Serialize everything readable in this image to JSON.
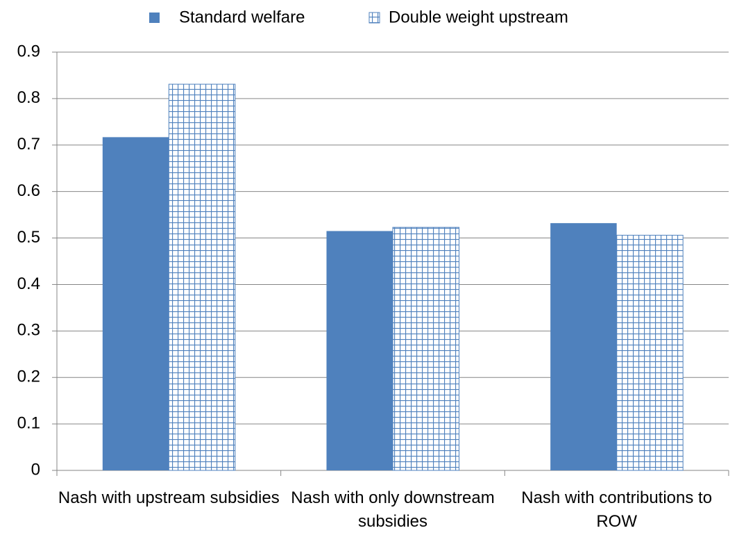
{
  "chart_data": {
    "type": "bar",
    "categories": [
      "Nash with upstream subsidies",
      "Nash with only downstream subsidies",
      "Nash with contributions to ROW"
    ],
    "series": [
      {
        "name": "Standard welfare",
        "color": "#4f81bd",
        "fill_pattern": "solid",
        "values": [
          0.717,
          0.515,
          0.532
        ]
      },
      {
        "name": "Double weight upstream",
        "color": "#4f81bd",
        "fill_pattern": "grid",
        "values": [
          0.831,
          0.523,
          0.506
        ]
      }
    ],
    "ylim": [
      0,
      0.9
    ],
    "yticks": [
      0,
      0.1,
      0.2,
      0.3,
      0.4,
      0.5,
      0.6,
      0.7,
      0.8,
      0.9
    ],
    "grid": true,
    "legend": "top"
  }
}
